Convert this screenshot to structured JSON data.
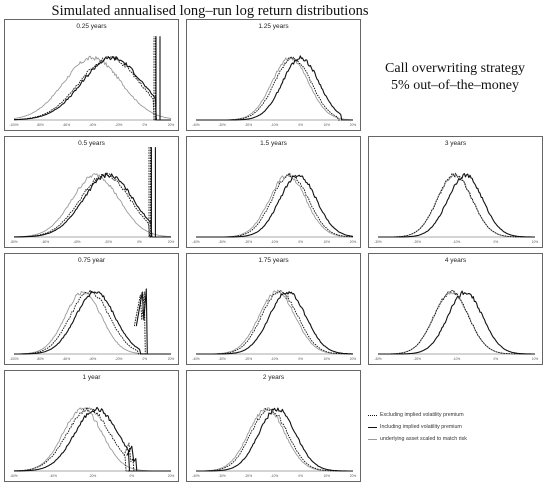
{
  "title": "Simulated annualised long–run log return distributions",
  "strategy_label": [
    "Call overwriting strategy",
    "5% out–of–the–money"
  ],
  "legend": [
    {
      "label": "Excluding implied volatility premium",
      "color": "#111111",
      "dash": "2,1",
      "width": 1.0
    },
    {
      "label": "Including implied volatility premium",
      "color": "#111111",
      "dash": "",
      "width": 1.2
    },
    {
      "label": "underlying asset scaled to match risk",
      "color": "#999999",
      "dash": "",
      "width": 0.9
    }
  ],
  "chart_data": [
    {
      "type": "line",
      "title": "0.25 years",
      "xlim": [
        -100,
        20
      ],
      "mu": {
        "excl": -27,
        "incl": -25,
        "und": -40
      },
      "sd": {
        "excl": 23,
        "incl": 23,
        "und": 22
      },
      "cap": 7,
      "spike": "tall",
      "spike_h": [
        1.35,
        1.35
      ],
      "tick_labels": [
        "-100%",
        "-80%",
        "-60%",
        "-40%",
        "-20%",
        "0%",
        "20%"
      ]
    },
    {
      "type": "line",
      "title": "1.25 years",
      "xlim": [
        -40,
        20
      ],
      "mu": {
        "excl": -3,
        "incl": 0,
        "und": -4
      },
      "sd": {
        "excl": 7,
        "incl": 7,
        "und": 7
      },
      "cap": 14,
      "spike": "none",
      "tick_labels": [
        "-40%",
        "-30%",
        "-20%",
        "-10%",
        "0%",
        "10%",
        "20%"
      ]
    },
    {
      "type": "line",
      "title": "0.5 years",
      "xlim": [
        -80,
        20
      ],
      "mu": {
        "excl": -22,
        "incl": -20,
        "und": -28
      },
      "sd": {
        "excl": 16,
        "incl": 16,
        "und": 15
      },
      "cap": 6,
      "spike": "tall",
      "spike_h": [
        1.45,
        1.45
      ],
      "tick_labels": [
        "-80%",
        "-60%",
        "-40%",
        "-20%",
        "0%",
        "20%"
      ]
    },
    {
      "type": "line",
      "title": "1.5 years",
      "xlim": [
        -40,
        20
      ],
      "mu": {
        "excl": -4,
        "incl": -1,
        "und": -5
      },
      "sd": {
        "excl": 7,
        "incl": 7,
        "und": 7
      },
      "cap": 100,
      "spike": "none",
      "tick_labels": [
        "-40%",
        "-30%",
        "-20%",
        "-10%",
        "0%",
        "10%",
        "20%"
      ]
    },
    {
      "type": "line",
      "title": "3 years",
      "xlim": [
        -30,
        15
      ],
      "mu": {
        "excl": -8,
        "incl": -5,
        "und": -8
      },
      "sd": {
        "excl": 5,
        "incl": 5,
        "und": 5
      },
      "cap": 100,
      "spike": "none",
      "tick_labels": [
        "-30%",
        "-20%",
        "-10%",
        "0%",
        "10%"
      ]
    },
    {
      "type": "line",
      "title": "0.75 year",
      "xlim": [
        -100,
        20
      ],
      "mu": {
        "excl": -42,
        "incl": -38,
        "und": -47
      },
      "sd": {
        "excl": 15,
        "incl": 15,
        "und": 14
      },
      "cap": -5,
      "spike": "twin",
      "spike_h": [
        0.95,
        1.0
      ],
      "tick_labels": [
        "-100%",
        "-80%",
        "-60%",
        "-40%",
        "-20%",
        "0%",
        "20%"
      ]
    },
    {
      "type": "line",
      "title": "1.75 years",
      "xlim": [
        -40,
        20
      ],
      "mu": {
        "excl": -8,
        "incl": -5,
        "und": -9
      },
      "sd": {
        "excl": 7,
        "incl": 7,
        "und": 7
      },
      "cap": 100,
      "spike": "none",
      "tick_labels": [
        "-40%",
        "-30%",
        "-20%",
        "-10%",
        "0%",
        "10%",
        "20%"
      ]
    },
    {
      "type": "line",
      "title": "4 years",
      "xlim": [
        -30,
        15
      ],
      "mu": {
        "excl": -9,
        "incl": -5,
        "und": -9
      },
      "sd": {
        "excl": 5,
        "incl": 5,
        "und": 5
      },
      "cap": 100,
      "spike": "none",
      "tick_labels": [
        "-30%",
        "-20%",
        "-10%",
        "0%",
        "10%"
      ]
    },
    {
      "type": "line",
      "title": "1 year",
      "xlim": [
        -60,
        20
      ],
      "mu": {
        "excl": -22,
        "incl": -18,
        "und": -25
      },
      "sd": {
        "excl": 11,
        "incl": 11,
        "und": 10
      },
      "cap": -3,
      "spike": "small",
      "spike_h": [
        0.45,
        0.4
      ],
      "tick_labels": [
        "-60%",
        "-40%",
        "-20%",
        "0%",
        "20%"
      ]
    },
    {
      "type": "line",
      "title": "2 years",
      "xlim": [
        -40,
        20
      ],
      "mu": {
        "excl": -12,
        "incl": -9,
        "und": -13
      },
      "sd": {
        "excl": 7,
        "incl": 7,
        "und": 7
      },
      "cap": 100,
      "spike": "none",
      "tick_labels": [
        "-40%",
        "-30%",
        "-20%",
        "-10%",
        "0%",
        "10%",
        "20%"
      ]
    }
  ]
}
